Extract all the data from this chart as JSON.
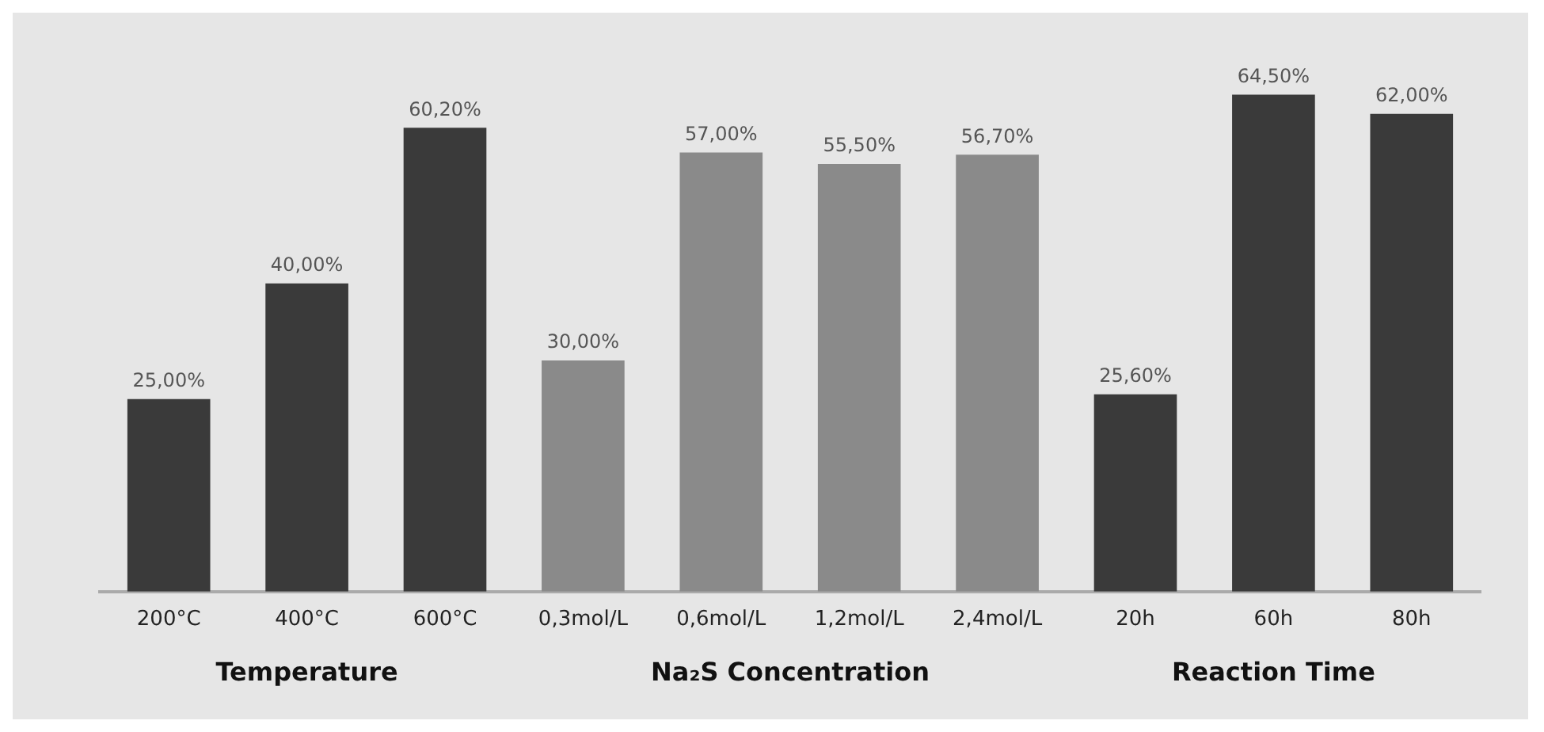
{
  "chart_data": {
    "type": "bar",
    "categories": [
      "200°C",
      "400°C",
      "600°C",
      "0,3mol/L",
      "0,6mol/L",
      "1,2mol/L",
      "2,4mol/L",
      "20h",
      "60h",
      "80h"
    ],
    "values": [
      25,
      40,
      60.2,
      30,
      57,
      55.5,
      56.7,
      25.6,
      64.5,
      62
    ],
    "colors": [
      "#3a3a3a",
      "#3a3a3a",
      "#3a3a3a",
      "#8a8a8a",
      "#8a8a8a",
      "#8a8a8a",
      "#8a8a8a",
      "#3a3a3a",
      "#3a3a3a",
      "#3a3a3a"
    ],
    "value_labels": [
      "25,00%",
      "40,00%",
      "60,20%",
      "30,00%",
      "57,00%",
      "55,50%",
      "56,70%",
      "25,60%",
      "64,50%",
      "62,00%"
    ],
    "annotations": [
      "Temperature",
      "Na₂S Concentration",
      "Reaction Time"
    ],
    "grid": false,
    "legend": false
  }
}
